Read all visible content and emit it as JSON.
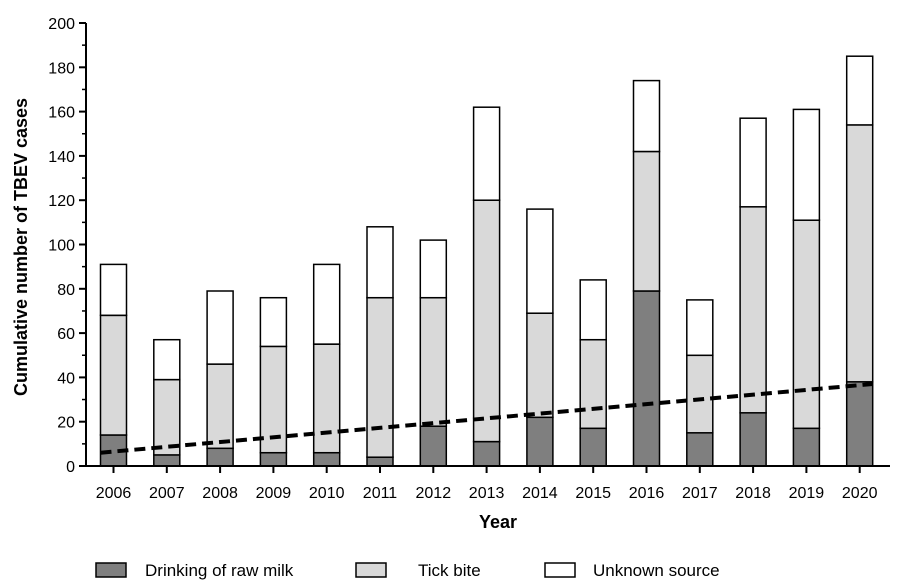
{
  "chart_data": {
    "type": "bar",
    "stacked": true,
    "title": "",
    "xlabel": "Year",
    "ylabel": "Cumulative number of TBEV cases",
    "ylim": [
      0,
      200
    ],
    "yticks": [
      0,
      20,
      40,
      60,
      80,
      100,
      120,
      140,
      160,
      180,
      200
    ],
    "categories": [
      "2006",
      "2007",
      "2008",
      "2009",
      "2010",
      "2011",
      "2012",
      "2013",
      "2014",
      "2015",
      "2016",
      "2017",
      "2018",
      "2019",
      "2020"
    ],
    "series": [
      {
        "name": "Drinking of raw milk",
        "color": "#7f7f7f",
        "values": [
          14,
          5,
          8,
          6,
          6,
          4,
          18,
          11,
          22,
          17,
          79,
          15,
          24,
          17,
          38
        ]
      },
      {
        "name": "Tick bite",
        "color": "#d9d9d9",
        "values": [
          54,
          34,
          38,
          48,
          49,
          72,
          58,
          109,
          47,
          40,
          63,
          35,
          93,
          94,
          116
        ]
      },
      {
        "name": "Unknown source",
        "color": "#ffffff",
        "values": [
          23,
          18,
          33,
          22,
          36,
          32,
          26,
          42,
          47,
          27,
          32,
          25,
          40,
          50,
          31
        ]
      }
    ],
    "trendline": {
      "series": "Drinking of raw milk",
      "style": "dashed",
      "start_value": 6,
      "end_value": 37
    },
    "grid": false,
    "legend_position": "bottom"
  }
}
